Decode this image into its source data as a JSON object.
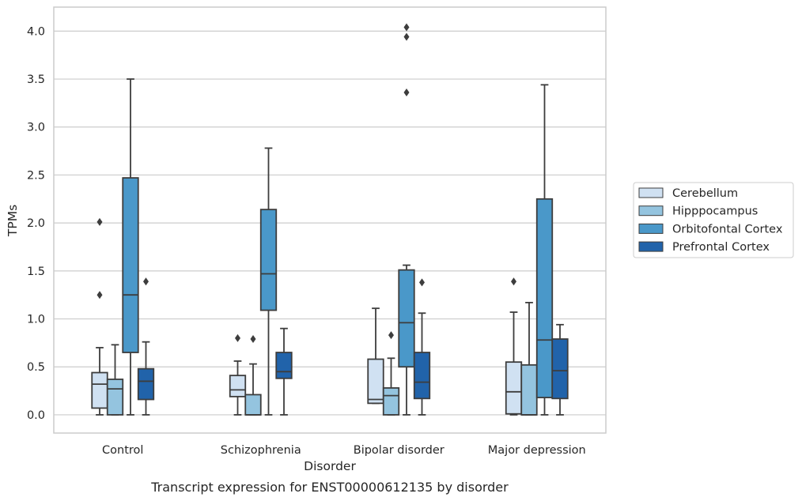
{
  "caption": "Transcript expression for ENST00000612135 by disorder",
  "chart_data": {
    "type": "box",
    "title": "",
    "xlabel": "Disorder",
    "ylabel": "TPMs",
    "ylim": [
      -0.19,
      4.25
    ],
    "yticks": [
      0.0,
      0.5,
      1.0,
      1.5,
      2.0,
      2.5,
      3.0,
      3.5,
      4.0
    ],
    "ytick_labels": [
      "0.0",
      "0.5",
      "1.0",
      "1.5",
      "2.0",
      "2.5",
      "3.0",
      "3.5",
      "4.0"
    ],
    "grid": "horizontal",
    "legend_position": "right",
    "categories": [
      "Control",
      "Schizophrenia",
      "Bipolar disorder",
      "Major depression"
    ],
    "series": [
      {
        "name": "Cerebellum",
        "color": "#d0e1f2",
        "boxes": [
          {
            "whisker_low": 0.0,
            "q1": 0.07,
            "median": 0.32,
            "q3": 0.44,
            "whisker_high": 0.7,
            "outliers": [
              1.25,
              2.01
            ]
          },
          {
            "whisker_low": 0.0,
            "q1": 0.19,
            "median": 0.26,
            "q3": 0.41,
            "whisker_high": 0.56,
            "outliers": [
              0.8
            ]
          },
          {
            "whisker_low": 0.12,
            "q1": 0.12,
            "median": 0.16,
            "q3": 0.58,
            "whisker_high": 1.11,
            "outliers": []
          },
          {
            "whisker_low": 0.0,
            "q1": 0.01,
            "median": 0.24,
            "q3": 0.55,
            "whisker_high": 1.07,
            "outliers": [
              1.39
            ]
          }
        ]
      },
      {
        "name": "Hipppocampus",
        "color": "#94c4df",
        "boxes": [
          {
            "whisker_low": 0.0,
            "q1": 0.0,
            "median": 0.27,
            "q3": 0.37,
            "whisker_high": 0.73,
            "outliers": []
          },
          {
            "whisker_low": 0.0,
            "q1": 0.0,
            "median": 0.0,
            "q3": 0.21,
            "whisker_high": 0.53,
            "outliers": [
              0.79
            ]
          },
          {
            "whisker_low": 0.0,
            "q1": 0.0,
            "median": 0.2,
            "q3": 0.28,
            "whisker_high": 0.59,
            "outliers": [
              0.83
            ]
          },
          {
            "whisker_low": 0.0,
            "q1": 0.0,
            "median": 0.0,
            "q3": 0.52,
            "whisker_high": 1.17,
            "outliers": []
          }
        ]
      },
      {
        "name": "Orbitofontal Cortex",
        "color": "#4a98c9",
        "boxes": [
          {
            "whisker_low": 0.0,
            "q1": 0.65,
            "median": 1.25,
            "q3": 2.47,
            "whisker_high": 3.5,
            "outliers": []
          },
          {
            "whisker_low": 0.0,
            "q1": 1.09,
            "median": 1.47,
            "q3": 2.14,
            "whisker_high": 2.78,
            "outliers": []
          },
          {
            "whisker_low": 0.0,
            "q1": 0.5,
            "median": 0.96,
            "q3": 1.51,
            "whisker_high": 1.56,
            "outliers": [
              3.36,
              3.94,
              4.04
            ]
          },
          {
            "whisker_low": 0.0,
            "q1": 0.18,
            "median": 0.78,
            "q3": 2.25,
            "whisker_high": 3.44,
            "outliers": []
          }
        ]
      },
      {
        "name": "Prefrontal Cortex",
        "color": "#2163aa",
        "boxes": [
          {
            "whisker_low": 0.0,
            "q1": 0.16,
            "median": 0.35,
            "q3": 0.48,
            "whisker_high": 0.76,
            "outliers": [
              1.39
            ]
          },
          {
            "whisker_low": 0.0,
            "q1": 0.38,
            "median": 0.45,
            "q3": 0.65,
            "whisker_high": 0.9,
            "outliers": []
          },
          {
            "whisker_low": 0.0,
            "q1": 0.17,
            "median": 0.34,
            "q3": 0.65,
            "whisker_high": 1.06,
            "outliers": [
              1.38
            ]
          },
          {
            "whisker_low": 0.0,
            "q1": 0.17,
            "median": 0.46,
            "q3": 0.79,
            "whisker_high": 0.94,
            "outliers": []
          }
        ]
      }
    ]
  }
}
